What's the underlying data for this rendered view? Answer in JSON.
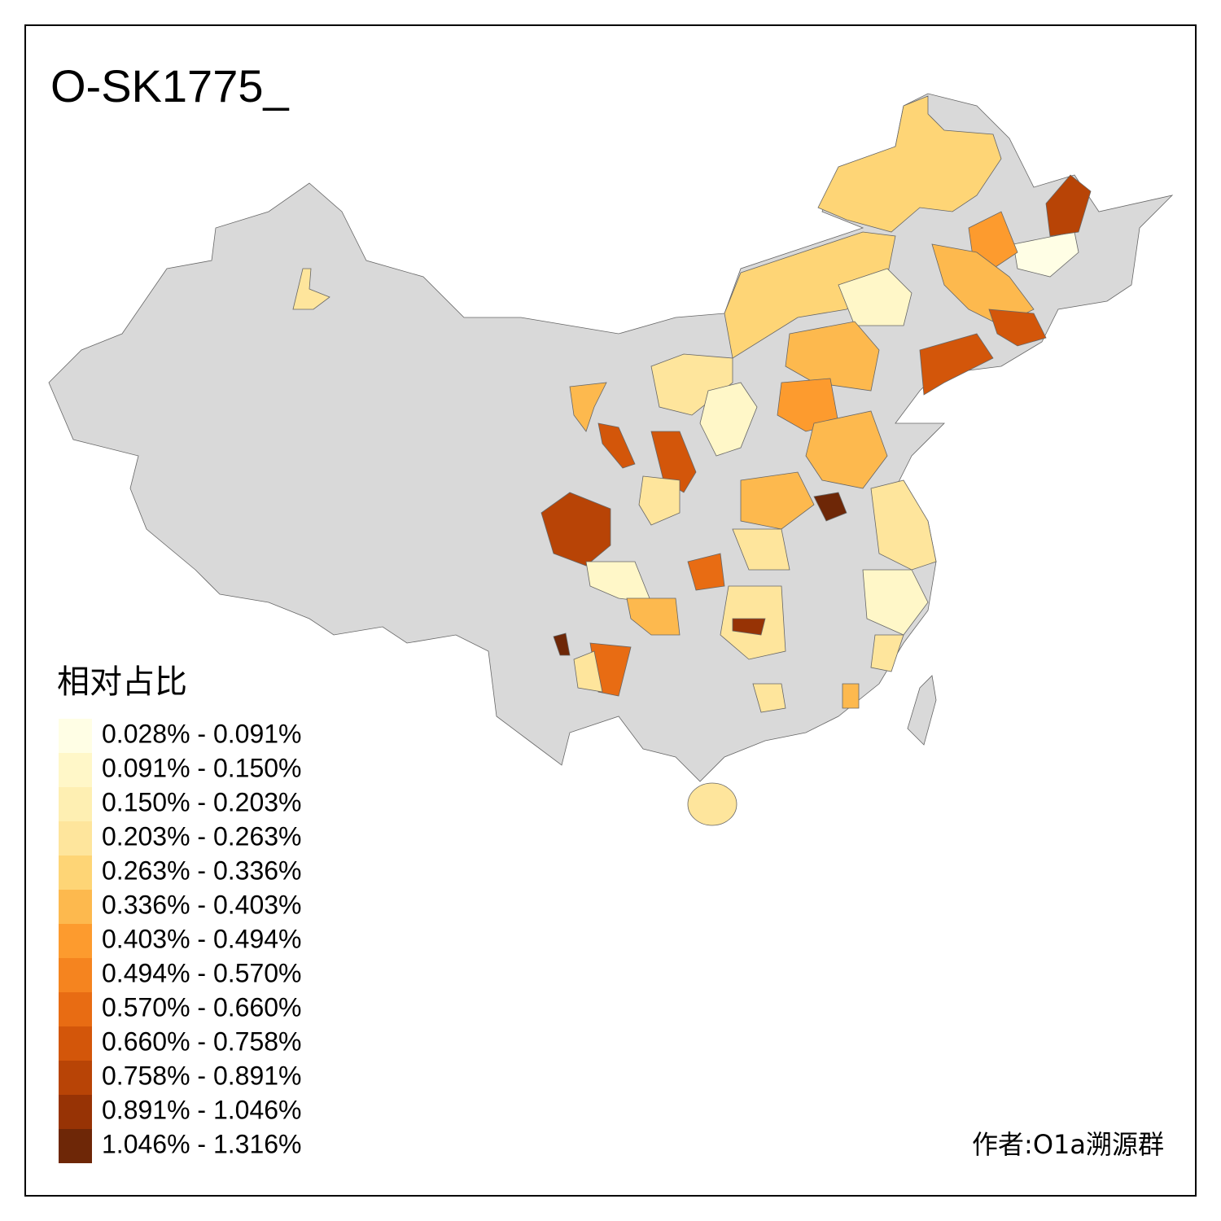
{
  "title": "O-SK1775_",
  "legend": {
    "title": "相对占比",
    "items": [
      {
        "label": "0.028% - 0.091%",
        "color": "#fffee5"
      },
      {
        "label": "0.091% - 0.150%",
        "color": "#fff7c8"
      },
      {
        "label": "0.150% - 0.203%",
        "color": "#feefb2"
      },
      {
        "label": "0.203% - 0.263%",
        "color": "#fee59c"
      },
      {
        "label": "0.263% - 0.336%",
        "color": "#fed576"
      },
      {
        "label": "0.336% - 0.403%",
        "color": "#fdb94e"
      },
      {
        "label": "0.403% - 0.494%",
        "color": "#fd9b2e"
      },
      {
        "label": "0.494% - 0.570%",
        "color": "#f5841f"
      },
      {
        "label": "0.570% - 0.660%",
        "color": "#e86c13"
      },
      {
        "label": "0.660% - 0.758%",
        "color": "#d3560a"
      },
      {
        "label": "0.758% - 0.891%",
        "color": "#b84406"
      },
      {
        "label": "0.891% - 1.046%",
        "color": "#973305"
      },
      {
        "label": "1.046% - 1.316%",
        "color": "#6e2707"
      }
    ]
  },
  "credit": "作者:O1a溯源群"
}
